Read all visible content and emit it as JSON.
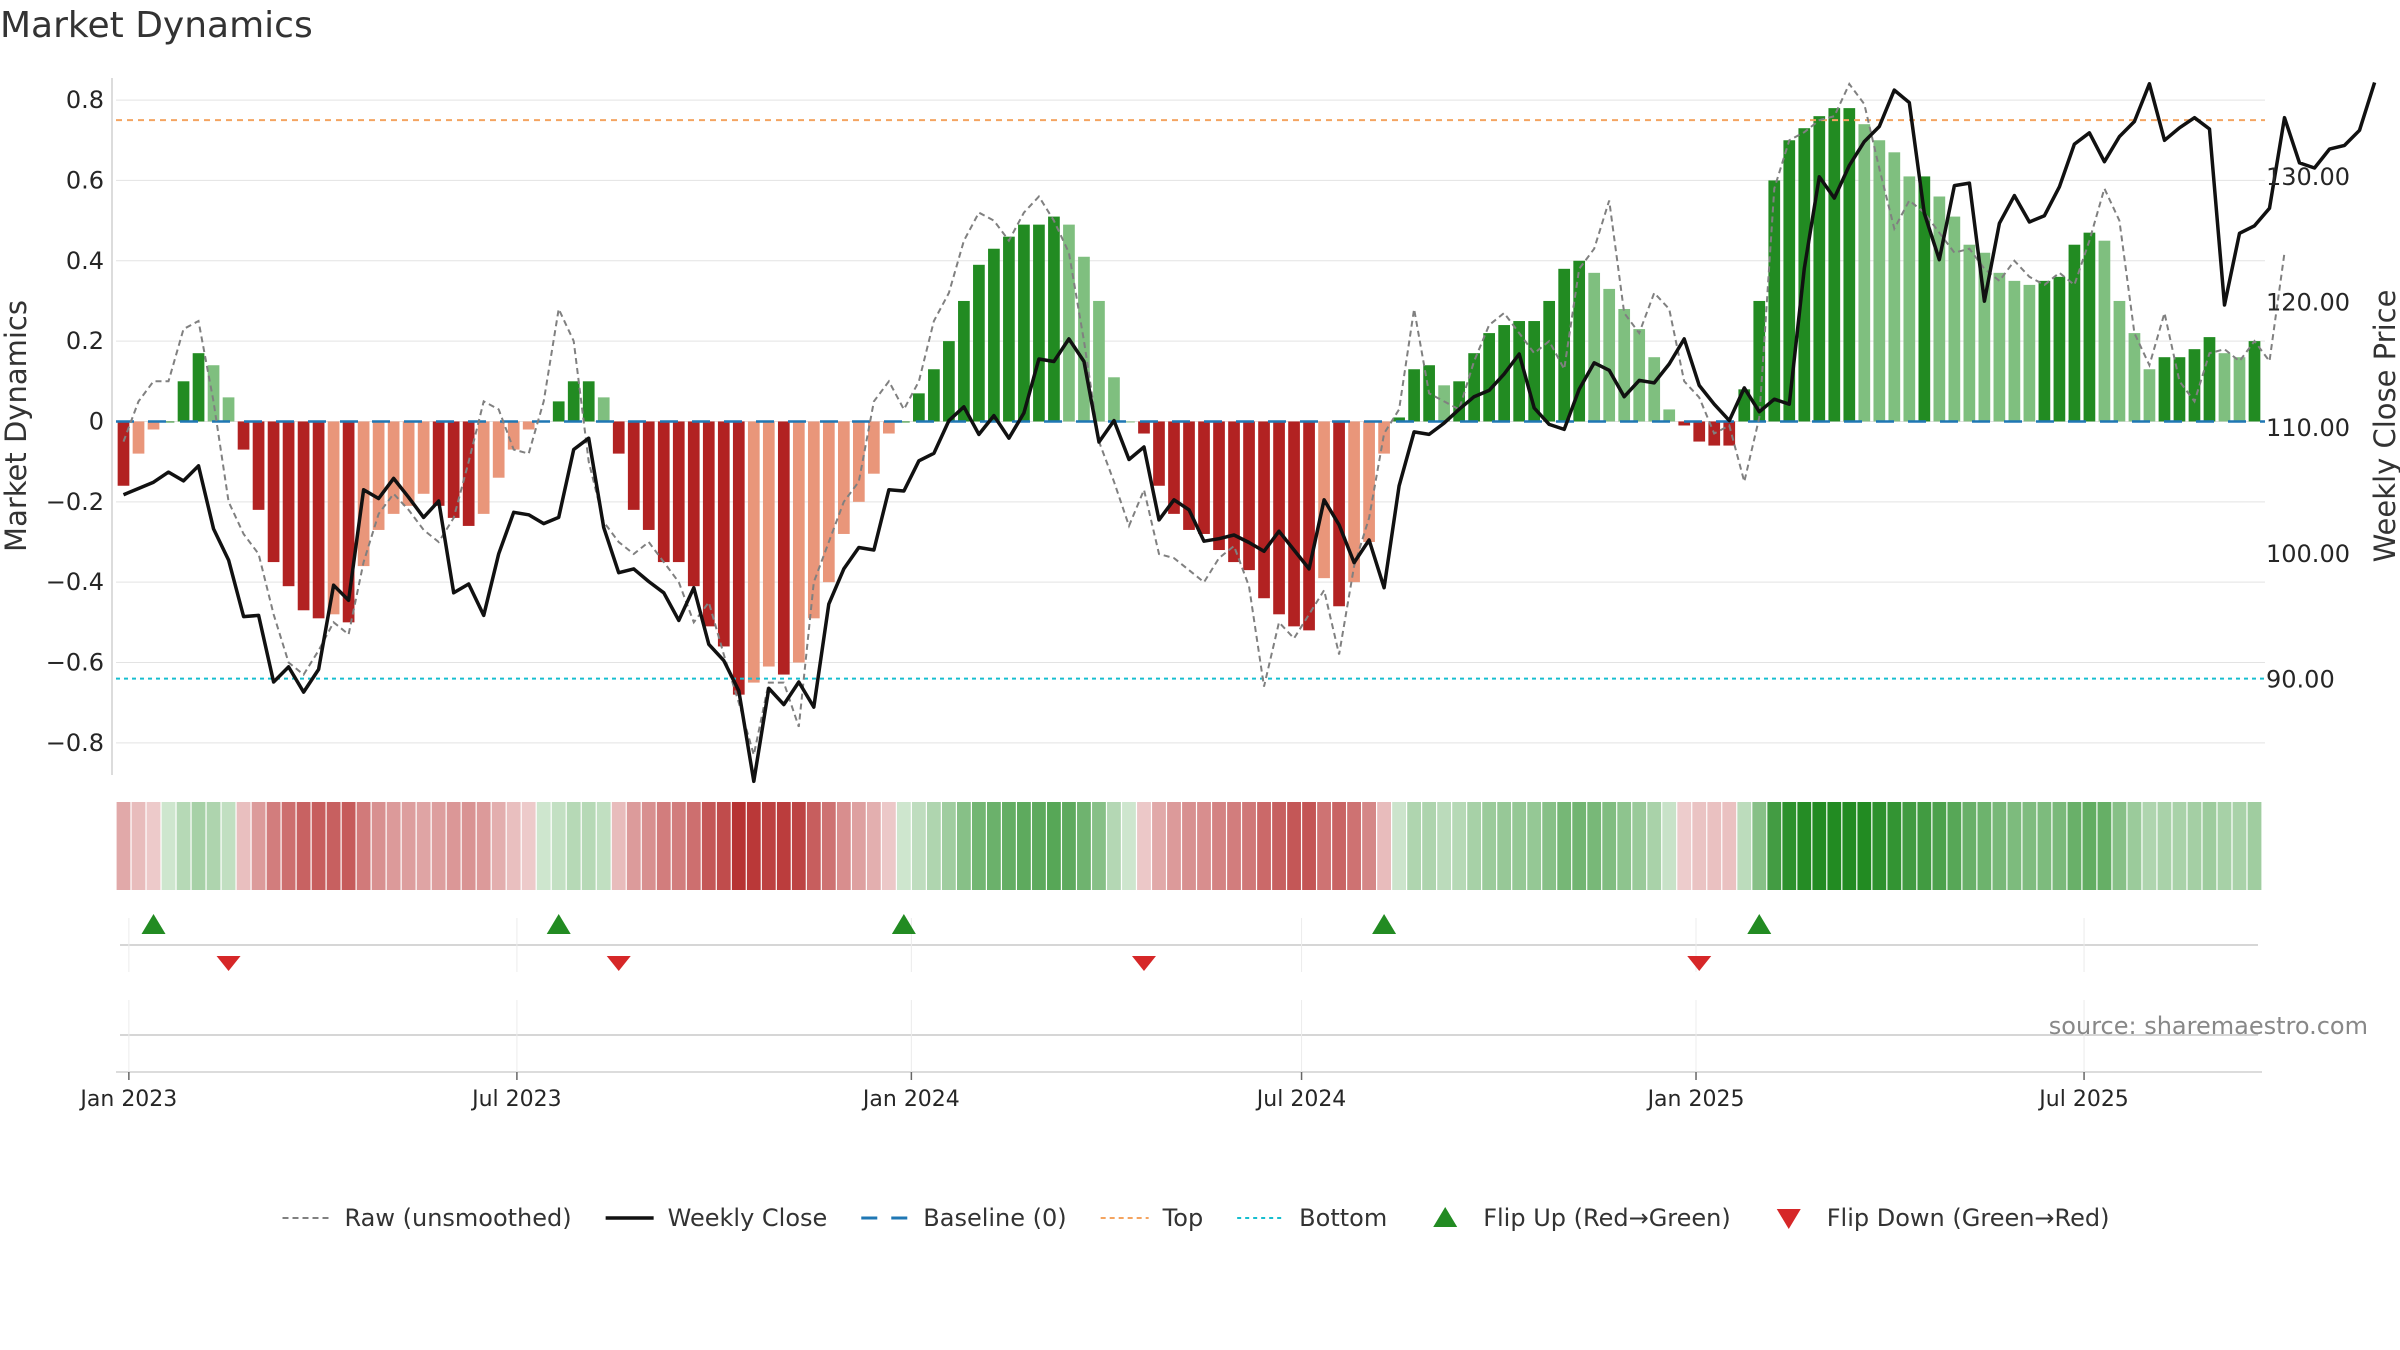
{
  "chart_data": {
    "type": "bar",
    "title": "Market Dynamics",
    "ylabel": "Market Dynamics",
    "y2label": "Weekly Close Price",
    "ylim": [
      -0.88,
      0.85
    ],
    "y2lim": [
      82.4,
      137.7
    ],
    "y_ticks": [
      "0.8",
      "0.6",
      "0.4",
      "0.2",
      "0",
      "−0.2",
      "−0.4",
      "−0.6",
      "−0.8"
    ],
    "y_tick_values": [
      0.8,
      0.6,
      0.4,
      0.2,
      0,
      -0.2,
      -0.4,
      -0.6,
      -0.8
    ],
    "y2_ticks": [
      "130.00",
      "120.00",
      "110.00",
      "100.00",
      "90.00"
    ],
    "y2_tick_values": [
      130,
      120,
      110,
      100,
      90
    ],
    "x_ticks": [
      "Jan 2023",
      "Jul 2023",
      "Jan 2024",
      "Jul 2024",
      "Jan 2025",
      "Jul 2025"
    ],
    "x_tick_dates": [
      "2023-01-01",
      "2023-07-01",
      "2024-01-01",
      "2024-07-01",
      "2025-01-01",
      "2025-07-01"
    ],
    "start_date": "2022-12-26",
    "week_days": 7,
    "top_level": 0.75,
    "bottom_level": -0.64,
    "baseline": 0,
    "values": [
      -0.16,
      -0.08,
      -0.02,
      0.0,
      0.1,
      0.17,
      0.14,
      0.06,
      -0.07,
      -0.22,
      -0.35,
      -0.41,
      -0.47,
      -0.49,
      -0.48,
      -0.5,
      -0.36,
      -0.27,
      -0.23,
      -0.21,
      -0.18,
      -0.21,
      -0.24,
      -0.26,
      -0.23,
      -0.14,
      -0.07,
      -0.02,
      0.0,
      0.05,
      0.1,
      0.1,
      0.06,
      -0.08,
      -0.22,
      -0.27,
      -0.35,
      -0.35,
      -0.41,
      -0.51,
      -0.56,
      -0.68,
      -0.65,
      -0.61,
      -0.63,
      -0.6,
      -0.49,
      -0.4,
      -0.28,
      -0.2,
      -0.13,
      -0.03,
      0.0,
      0.07,
      0.13,
      0.2,
      0.3,
      0.39,
      0.43,
      0.46,
      0.49,
      0.49,
      0.51,
      0.49,
      0.41,
      0.3,
      0.11,
      0.0,
      -0.03,
      -0.16,
      -0.23,
      -0.27,
      -0.28,
      -0.32,
      -0.35,
      -0.37,
      -0.44,
      -0.48,
      -0.51,
      -0.52,
      -0.39,
      -0.46,
      -0.4,
      -0.3,
      -0.08,
      0.01,
      0.13,
      0.14,
      0.09,
      0.1,
      0.17,
      0.22,
      0.24,
      0.25,
      0.25,
      0.3,
      0.38,
      0.4,
      0.37,
      0.33,
      0.28,
      0.23,
      0.16,
      0.03,
      -0.01,
      -0.05,
      -0.06,
      -0.06,
      0.08,
      0.3,
      0.6,
      0.7,
      0.73,
      0.76,
      0.78,
      0.78,
      0.74,
      0.7,
      0.67,
      0.61,
      0.61,
      0.56,
      0.51,
      0.44,
      0.42,
      0.37,
      0.35,
      0.34,
      0.35,
      0.36,
      0.44,
      0.47,
      0.45,
      0.3,
      0.22,
      0.13,
      0.16,
      0.16,
      0.18,
      0.21,
      0.17,
      0.16,
      0.2
    ],
    "raw_values": [
      -0.05,
      0.05,
      0.1,
      0.1,
      0.23,
      0.25,
      0.05,
      -0.2,
      -0.28,
      -0.33,
      -0.48,
      -0.6,
      -0.63,
      -0.57,
      -0.5,
      -0.53,
      -0.35,
      -0.23,
      -0.18,
      -0.22,
      -0.27,
      -0.3,
      -0.24,
      -0.1,
      0.05,
      0.03,
      -0.07,
      -0.08,
      0.05,
      0.28,
      0.2,
      -0.1,
      -0.25,
      -0.3,
      -0.33,
      -0.3,
      -0.35,
      -0.4,
      -0.5,
      -0.45,
      -0.58,
      -0.7,
      -0.83,
      -0.65,
      -0.65,
      -0.76,
      -0.4,
      -0.3,
      -0.2,
      -0.15,
      0.05,
      0.1,
      0.03,
      0.1,
      0.25,
      0.32,
      0.45,
      0.52,
      0.5,
      0.45,
      0.52,
      0.56,
      0.5,
      0.42,
      0.2,
      -0.05,
      -0.15,
      -0.26,
      -0.17,
      -0.33,
      -0.34,
      -0.37,
      -0.4,
      -0.34,
      -0.31,
      -0.41,
      -0.66,
      -0.5,
      -0.54,
      -0.48,
      -0.42,
      -0.58,
      -0.36,
      -0.24,
      -0.03,
      0.03,
      0.28,
      0.07,
      0.05,
      0.03,
      0.15,
      0.24,
      0.27,
      0.22,
      0.17,
      0.2,
      0.13,
      0.38,
      0.43,
      0.55,
      0.27,
      0.22,
      0.32,
      0.28,
      0.1,
      0.06,
      -0.03,
      -0.01,
      -0.15,
      0.01,
      0.58,
      0.7,
      0.72,
      0.75,
      0.76,
      0.84,
      0.79,
      0.63,
      0.48,
      0.55,
      0.52,
      0.47,
      0.42,
      0.43,
      0.38,
      0.35,
      0.4,
      0.36,
      0.34,
      0.37,
      0.34,
      0.45,
      0.58,
      0.5,
      0.22,
      0.14,
      0.27,
      0.1,
      0.05,
      0.17,
      0.18,
      0.15,
      0.2,
      0.15,
      0.42
    ],
    "close_prices": [
      104.7,
      105.2,
      105.7,
      106.5,
      105.8,
      107.0,
      102.0,
      99.5,
      95.0,
      95.1,
      89.8,
      91.0,
      89.0,
      90.8,
      97.5,
      96.3,
      105.1,
      104.4,
      106.0,
      104.5,
      102.9,
      104.2,
      96.9,
      97.6,
      95.1,
      100.0,
      103.3,
      103.1,
      102.4,
      102.9,
      108.3,
      109.2,
      102.1,
      98.5,
      98.8,
      97.8,
      96.9,
      94.7,
      97.3,
      92.8,
      91.5,
      89.1,
      81.9,
      89.3,
      88.0,
      89.8,
      87.8,
      96.0,
      98.8,
      100.5,
      100.3,
      105.1,
      105.0,
      107.4,
      108.0,
      110.6,
      111.7,
      109.5,
      111.0,
      109.2,
      111.2,
      115.5,
      115.3,
      117.1,
      115.3,
      108.9,
      110.6,
      107.5,
      108.5,
      102.7,
      104.3,
      103.5,
      101.0,
      101.2,
      101.5,
      100.9,
      100.2,
      101.8,
      100.3,
      98.8,
      104.3,
      102.3,
      99.3,
      101.1,
      97.3,
      105.4,
      109.7,
      109.5,
      110.4,
      111.5,
      112.5,
      113.0,
      114.3,
      115.9,
      111.6,
      110.3,
      109.9,
      113.1,
      115.2,
      114.6,
      112.5,
      113.8,
      113.6,
      115.1,
      117.1,
      113.4,
      111.9,
      110.6,
      113.2,
      111.3,
      112.3,
      111.9,
      122.7,
      130.0,
      128.3,
      130.9,
      132.8,
      134.0,
      136.9,
      135.9,
      127.1,
      123.4,
      129.3,
      129.5,
      120.1,
      126.3,
      128.5,
      126.4,
      126.9,
      129.2,
      132.6,
      133.5,
      131.2,
      133.2,
      134.4,
      137.4,
      132.9,
      133.9,
      134.7,
      133.8,
      119.8,
      125.5,
      126.1,
      127.5,
      134.7,
      131.1,
      130.7,
      132.2,
      132.5,
      133.7,
      137.5
    ],
    "flip_up_weeks": [
      2,
      29,
      52,
      84,
      109
    ],
    "flip_down_weeks": [
      7,
      33,
      68,
      105
    ],
    "colors": {
      "strong_green": "#228b22",
      "light_green": "#7fbf7f",
      "strong_red": "#b22222",
      "light_red": "#e9967a",
      "raw_line": "#808080",
      "close_line": "#111111",
      "baseline": "#1f77b4",
      "top": "#f4a460",
      "bottom": "#17becf",
      "flip_up": "#228b22",
      "flip_down": "#d62728",
      "grid": "#e3e3e3"
    },
    "legend": [
      {
        "label": "Raw (unsmoothed)",
        "kind": "raw"
      },
      {
        "label": "Weekly Close",
        "kind": "close"
      },
      {
        "label": "Baseline (0)",
        "kind": "baseline"
      },
      {
        "label": "Top",
        "kind": "top"
      },
      {
        "label": "Bottom",
        "kind": "bottom"
      },
      {
        "label": "Flip Up (Red→Green)",
        "kind": "flip_up"
      },
      {
        "label": "Flip Down (Green→Red)",
        "kind": "flip_down"
      }
    ],
    "legend_position": "bottom-center",
    "source": "source: sharemaestro.com"
  }
}
